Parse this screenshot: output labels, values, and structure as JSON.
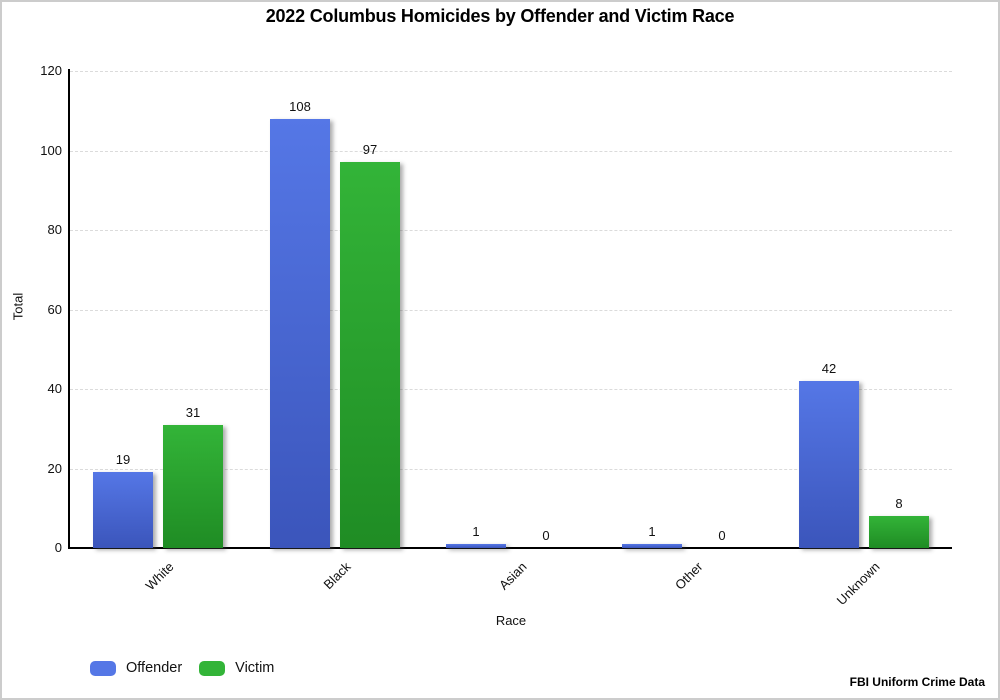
{
  "title": "2022 Columbus Homicides by Offender and Victim Race",
  "source_note": "FBI Uniform Crime Data",
  "chart_data": {
    "type": "bar",
    "title": "2022 Columbus Homicides by Offender and Victim Race",
    "categories": [
      "White",
      "Black",
      "Asian",
      "Other",
      "Unknown"
    ],
    "series": [
      {
        "name": "Offender",
        "color": "#5577e6",
        "color_dark": "#3b55bb",
        "values": [
          19,
          108,
          1,
          1,
          42
        ]
      },
      {
        "name": "Victim",
        "color": "#33b438",
        "color_dark": "#1f8c24",
        "values": [
          31,
          97,
          0,
          0,
          8
        ]
      }
    ],
    "xlabel": "Race",
    "ylabel": "Total",
    "ylim": [
      0,
      120
    ],
    "yticks": [
      0,
      20,
      40,
      60,
      80,
      100,
      120
    ],
    "grid": true,
    "gridline_color": "#dbdbdb",
    "axis_color": "#000000",
    "legend_position": "bottom-left",
    "bar_labels_shown": true
  }
}
